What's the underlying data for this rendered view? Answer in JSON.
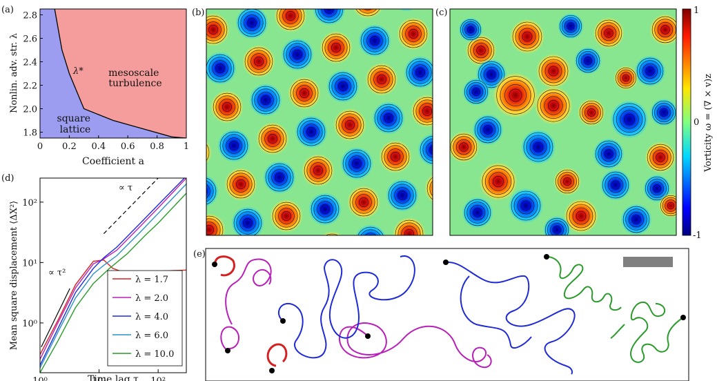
{
  "panel_labels": {
    "a": "(a)",
    "b": "(b)",
    "c": "(c)",
    "d": "(d)",
    "e": "(e)"
  },
  "colors": {
    "square_region": "#9c9cf0",
    "turbulence_region": "#f59c9c",
    "series": [
      "#d62020",
      "#b81fb8",
      "#1e2ad6",
      "#2a92c8",
      "#2a9a2a"
    ],
    "scale_bar": "#808080"
  },
  "chart_data": [
    {
      "id": "a",
      "type": "area",
      "xlabel": "Coefficient a",
      "ylabel": "Nonlin. adv. str. λ",
      "xlim": [
        0,
        1
      ],
      "ylim": [
        1.75,
        2.85
      ],
      "xticks": [
        "0",
        "0.2",
        "0.4",
        "0.6",
        "0.8",
        "1"
      ],
      "yticks": [
        "1.8",
        "2.0",
        "2.2",
        "2.4",
        "2.6",
        "2.8"
      ],
      "boundary": {
        "name": "λ*",
        "x": [
          0.1,
          0.15,
          0.2,
          0.3,
          0.5,
          0.7,
          0.9,
          1.0
        ],
        "y": [
          2.85,
          2.5,
          2.3,
          2.0,
          1.9,
          1.83,
          1.76,
          1.75
        ]
      },
      "regions": [
        {
          "name": "square lattice",
          "lines": [
            "square",
            "lattice"
          ]
        },
        {
          "name": "mesoscale turbulence",
          "lines": [
            "mesoscale",
            "turbulence"
          ]
        }
      ],
      "boundary_label": "λ*",
      "grid": false
    },
    {
      "id": "b",
      "type": "heatmap",
      "pattern": "square lattice vortex field, contours",
      "colorscale": "jet"
    },
    {
      "id": "c",
      "type": "heatmap",
      "pattern": "mesoscale turbulence vortex field, contours",
      "colorscale": "jet",
      "colorbar": {
        "label": "Vorticity ω = (∇ × v)z",
        "ticks": [
          "1",
          "0",
          "-1"
        ],
        "range": [
          -1,
          1
        ]
      }
    },
    {
      "id": "d",
      "type": "line",
      "xscale": "log",
      "yscale": "log",
      "xlabel": "Time lag τ",
      "ylabel": "Mean square displacement ⟨ΔX²⟩",
      "xlim": [
        1,
        300
      ],
      "ylim": [
        0.15,
        250
      ],
      "xticks": [
        "10⁰",
        "10¹",
        "10²"
      ],
      "yticks": [
        "10⁰",
        "10¹",
        "10²"
      ],
      "legend_position": "bottom-right",
      "series": [
        {
          "name": "λ = 1.7",
          "x": [
            1,
            2,
            4,
            8,
            12,
            17,
            25,
            40,
            100,
            300
          ],
          "y": [
            0.3,
            1.1,
            4.3,
            10.5,
            11,
            8,
            7,
            7,
            7.2,
            7.5
          ]
        },
        {
          "name": "λ = 2.0",
          "x": [
            1,
            2,
            4,
            8,
            12,
            20,
            50,
            100,
            300
          ],
          "y": [
            0.25,
            1.0,
            3.8,
            9.5,
            11.5,
            16,
            40,
            80,
            250
          ]
        },
        {
          "name": "λ = 4.0",
          "x": [
            1,
            2,
            4,
            8,
            12,
            20,
            50,
            100,
            300
          ],
          "y": [
            0.2,
            0.8,
            3.2,
            8,
            12,
            18,
            45,
            90,
            270
          ]
        },
        {
          "name": "λ = 6.0",
          "x": [
            1,
            2,
            4,
            8,
            12,
            20,
            50,
            100,
            300
          ],
          "y": [
            0.18,
            0.7,
            2.6,
            6.5,
            9,
            13,
            32,
            65,
            200
          ]
        },
        {
          "name": "λ = 10.0",
          "x": [
            1,
            2,
            4,
            8,
            15,
            30,
            60,
            100,
            300
          ],
          "y": [
            0.15,
            0.5,
            1.8,
            4.5,
            8,
            14,
            28,
            45,
            140
          ]
        }
      ],
      "guides": [
        {
          "label": "∝ τ²",
          "slope": 2
        },
        {
          "label": "∝ τ",
          "slope": 1
        }
      ]
    }
  ]
}
